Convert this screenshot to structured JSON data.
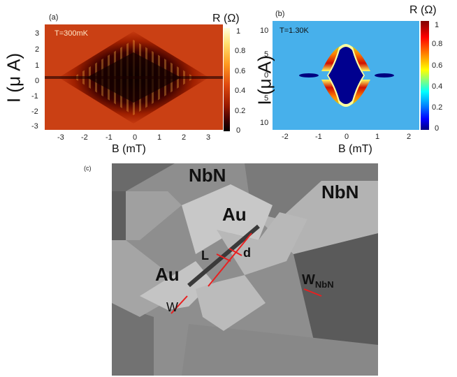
{
  "panel_a": {
    "label": "(a)",
    "temperature": "T=300mK",
    "ylabel": "I (μ A)",
    "xlabel": "B (mT)",
    "colorbar_title": "R (Ω)",
    "xticks": [
      "-3",
      "-2",
      "-1",
      "0",
      "1",
      "2",
      "3"
    ],
    "yticks": [
      "3",
      "2",
      "1",
      "0",
      "-1",
      "-2",
      "-3"
    ],
    "cbticks": [
      "1",
      "0.8",
      "0.6",
      "0.4",
      "0.2",
      "0"
    ]
  },
  "panel_b": {
    "label": "(b)",
    "temperature": "T=1.30K",
    "ylabel": "I (μ A)",
    "xlabel": "B (mT)",
    "colorbar_title": "R (Ω)",
    "xticks": [
      "-2",
      "-1",
      "0",
      "1",
      "2"
    ],
    "yticks": [
      "10",
      "5",
      "0",
      "5",
      "10"
    ],
    "cbticks": [
      "1",
      "0.8",
      "0.6",
      "0.4",
      "0.2",
      "0"
    ]
  },
  "panel_c": {
    "label": "(c)",
    "nbn_left": "NbN",
    "nbn_right": "NbN",
    "au_top": "Au",
    "au_bottom": "Au",
    "L": "L",
    "d": "d",
    "W": "W",
    "W_nbn_main": "W",
    "W_nbn_sub": "NbN"
  },
  "chart_data": [
    {
      "type": "heatmap",
      "xlim": [
        -3.5,
        3.5
      ],
      "ylim": [
        -3.3,
        3.3
      ],
      "zlim": [
        0,
        1
      ],
      "colormap": "hot"
    },
    {
      "type": "heatmap",
      "xlim": [
        -2.4,
        2.4
      ],
      "ylim": [
        -12,
        12
      ],
      "zlim": [
        0,
        1
      ],
      "colormap": "jet"
    }
  ]
}
